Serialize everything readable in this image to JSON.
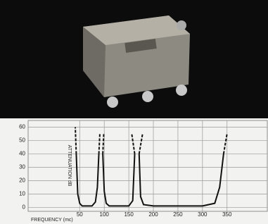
{
  "chart_data": {
    "type": "line",
    "x_label": "FREQUENCY (mc)",
    "y_label": "ATTENUATION dB",
    "xlim": [
      -55,
      432
    ],
    "ylim": [
      -3,
      65
    ],
    "xticks": [
      50,
      100,
      150,
      200,
      250,
      300,
      350
    ],
    "yticks": [
      0,
      10,
      20,
      30,
      40,
      50,
      60
    ],
    "grid": true,
    "series": [
      {
        "color": "#111",
        "dash": false,
        "x": [
          43,
          46,
          50,
          55,
          75,
          82,
          86,
          89,
          null,
          97,
          100,
          104,
          110,
          150,
          158,
          162,
          null,
          171,
          174,
          180,
          200,
          300,
          325,
          335,
          343
        ],
        "values": [
          40,
          10,
          3,
          1,
          1,
          4,
          15,
          40,
          null,
          40,
          12,
          3,
          1,
          1,
          5,
          40,
          null,
          40,
          8,
          2,
          1,
          1,
          3,
          15,
          40
        ]
      },
      {
        "color": "#111",
        "dash": true,
        "x": [
          43,
          41,
          null,
          89,
          91,
          null,
          97,
          99,
          null,
          162,
          156,
          null,
          171,
          178,
          null,
          343,
          350
        ],
        "values": [
          40,
          60,
          null,
          40,
          55,
          null,
          40,
          55,
          null,
          40,
          55,
          null,
          40,
          55,
          null,
          40,
          55
        ]
      }
    ]
  }
}
